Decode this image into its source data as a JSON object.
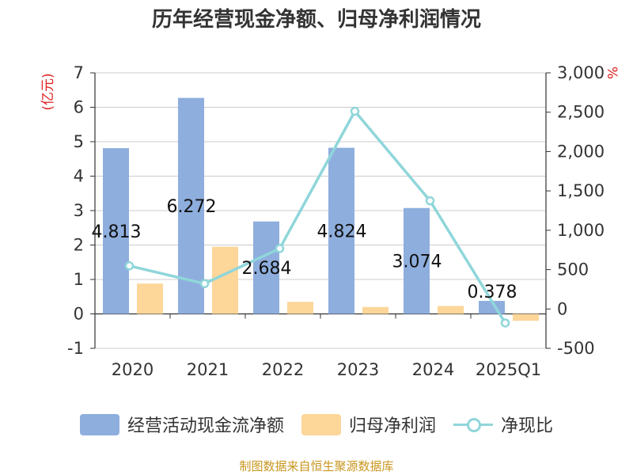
{
  "chart_data": {
    "type": "bar",
    "title": "历年经营现金净额、归母净利润情况",
    "categories": [
      "2020",
      "2021",
      "2022",
      "2023",
      "2024",
      "2025Q1"
    ],
    "series": [
      {
        "name": "经营活动现金流净额",
        "type": "bar",
        "axis": "left",
        "color": "#8eaedd",
        "values": [
          4.813,
          6.272,
          2.684,
          4.824,
          3.074,
          0.378
        ]
      },
      {
        "name": "归母净利润",
        "type": "bar",
        "axis": "left",
        "color": "#fdd699",
        "values": [
          0.88,
          1.95,
          0.35,
          0.2,
          0.23,
          -0.2
        ]
      },
      {
        "name": "净现比",
        "type": "line",
        "axis": "right",
        "color": "#8fd6da",
        "values": [
          548,
          322,
          768,
          2512,
          1375,
          -178
        ]
      }
    ],
    "data_labels": [
      "4.813",
      "6.272",
      "2.684",
      "4.824",
      "3.074",
      "0.378"
    ],
    "left_axis": {
      "label": "(亿元)",
      "min": -1,
      "max": 7,
      "ticks": [
        "-1",
        "0",
        "1",
        "2",
        "3",
        "4",
        "5",
        "6",
        "7"
      ]
    },
    "right_axis": {
      "label": "%",
      "min": -500,
      "max": 3000,
      "ticks": [
        "-500",
        "0",
        "500",
        "1,000",
        "1,500",
        "2,000",
        "2,500",
        "3,000"
      ]
    },
    "grid": true,
    "legend": "bottom"
  },
  "source_note": "制图数据来自恒生聚源数据库"
}
